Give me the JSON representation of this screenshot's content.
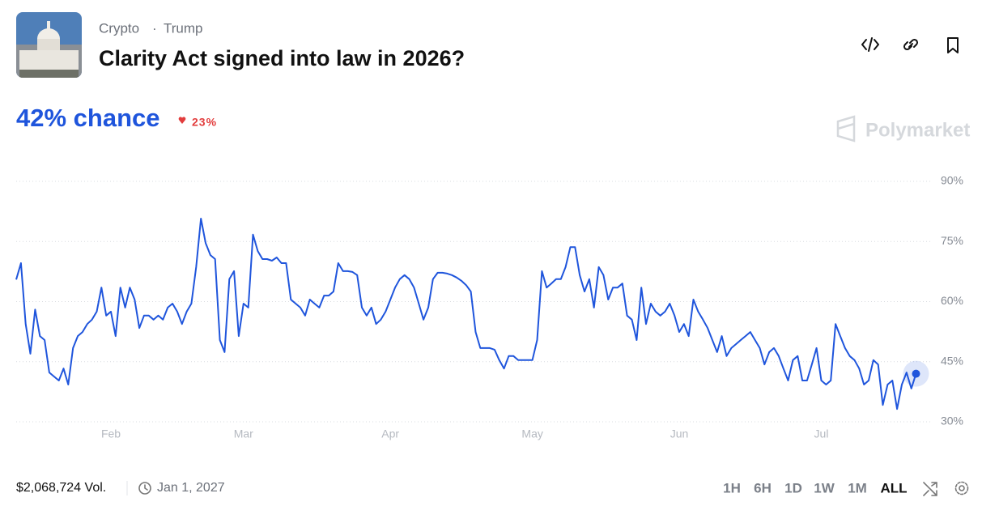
{
  "header": {
    "category": "Crypto",
    "tag": "Trump",
    "title": "Clarity Act signed into law in 2026?",
    "chance": "42% chance",
    "change": "23%",
    "brand": "Polymarket"
  },
  "chart_data": {
    "type": "line",
    "series": [
      {
        "color": "#1f55dc",
        "values": [
          65.5,
          69.6,
          54.4,
          47,
          58,
          51.4,
          50.4,
          42.3,
          41.3,
          40.3,
          43.3,
          39.3,
          48.4,
          51.4,
          52.4,
          54.4,
          55.5,
          57.5,
          63.5,
          56.5,
          57.5,
          51.4,
          63.5,
          58.5,
          63.5,
          60.5,
          53.4,
          56.5,
          56.5,
          55.5,
          56.5,
          55.5,
          58.5,
          59.5,
          57.5,
          54.4,
          57.5,
          59.5,
          68.6,
          80.7,
          74.6,
          71.6,
          70.6,
          50.4,
          47.4,
          65.6,
          67.6,
          51.4,
          59.5,
          58.5,
          76.7,
          72.6,
          70.6,
          70.6,
          70.2,
          71,
          69.6,
          69.6,
          60.5,
          59.5,
          58.5,
          56.5,
          60.5,
          59.5,
          58.5,
          61.5,
          61.5,
          62.5,
          69.6,
          67.6,
          67.6,
          67.4,
          66.6,
          58.5,
          56.5,
          58.5,
          54.4,
          55.5,
          57.5,
          60.5,
          63.5,
          65.6,
          66.6,
          65.6,
          63.5,
          59.5,
          55.5,
          58.5,
          65.6,
          67.2,
          67.2,
          67,
          66.6,
          66,
          65.2,
          64.1,
          62.5,
          52.4,
          48.4,
          48.4,
          48.4,
          48,
          45.4,
          43.3,
          46.4,
          46.4,
          45.4,
          45.4,
          45.4,
          45.4,
          50.4,
          67.6,
          63.5,
          64.5,
          65.6,
          65.6,
          68.6,
          73.6,
          73.6,
          66.6,
          62.5,
          65.6,
          58.5,
          68.6,
          66.6,
          60.5,
          63.5,
          63.5,
          64.5,
          56.5,
          55.5,
          50.4,
          63.5,
          54.4,
          59.5,
          57.5,
          56.5,
          57.5,
          59.5,
          56.5,
          52.4,
          54.4,
          51.4,
          60.5,
          57.5,
          55.5,
          53.4,
          50.4,
          47.4,
          51.4,
          46.4,
          48.4,
          49.4,
          50.4,
          51.4,
          52.4,
          50.4,
          48.4,
          44.3,
          47.4,
          48.4,
          46.4,
          43.3,
          40.3,
          45.4,
          46.4,
          40.3,
          40.3,
          44.3,
          48.4,
          40.3,
          39.3,
          40.3,
          54.4,
          51.4,
          48.4,
          46.4,
          45.4,
          43.3,
          39.3,
          40.3,
          45.4,
          44.3,
          34.2,
          39.3,
          40.3,
          33.2,
          39.3,
          42.3,
          38.3,
          42
        ]
      }
    ],
    "xlim": [
      0,
      190
    ],
    "xticks": [
      {
        "value": 20,
        "label": "Feb"
      },
      {
        "value": 48,
        "label": "Mar"
      },
      {
        "value": 79,
        "label": "Apr"
      },
      {
        "value": 109,
        "label": "May"
      },
      {
        "value": 140,
        "label": "Jun"
      },
      {
        "value": 170,
        "label": "Jul"
      }
    ],
    "ylim": [
      30,
      90
    ],
    "yticks": [
      {
        "value": 30,
        "label": "30%"
      },
      {
        "value": 45,
        "label": "45%"
      },
      {
        "value": 60,
        "label": "60%"
      },
      {
        "value": 75,
        "label": "75%"
      },
      {
        "value": 90,
        "label": "90%"
      }
    ],
    "grid": true
  },
  "footer": {
    "volume": "$2,068,724 Vol.",
    "end_date": "Jan 1, 2027",
    "ranges": [
      "1H",
      "6H",
      "1D",
      "1W",
      "1M",
      "ALL"
    ]
  }
}
